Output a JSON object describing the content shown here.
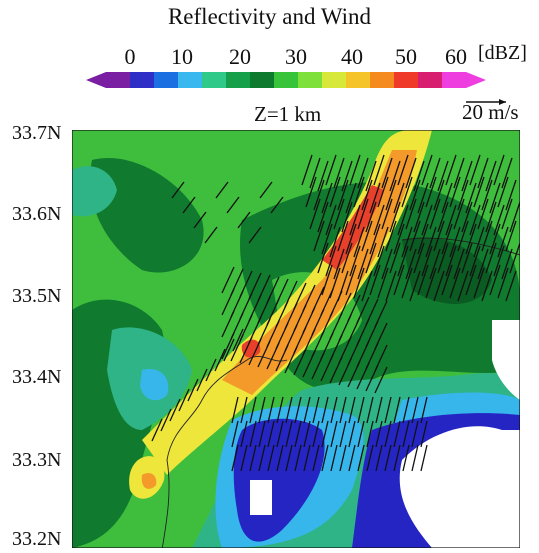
{
  "title": "Reflectivity and Wind",
  "colorbar": {
    "ticks": [
      "0",
      "10",
      "20",
      "30",
      "40",
      "50",
      "60"
    ],
    "unit": "[dBZ]",
    "colors": [
      "#7a1fa2",
      "#2f2fc8",
      "#1b6fe0",
      "#39b8f0",
      "#2fc98a",
      "#17a04a",
      "#0e7a2e",
      "#38c43a",
      "#7ee03a",
      "#d8e83a",
      "#f5c32a",
      "#f58a1e",
      "#ef3a2a",
      "#d81e6e",
      "#ee3ee0"
    ]
  },
  "subtitle": "Z=1 km",
  "reference_vector": {
    "label": "20 m/s"
  },
  "y_axis_labels": [
    "33.7N",
    "33.6N",
    "33.5N",
    "33.4N",
    "33.3N",
    "33.2N"
  ],
  "map": {
    "field": "radar reflectivity",
    "colors": {
      "background_green": "#3fbe3d",
      "dark_green": "#107a2e",
      "teal": "#2fb487",
      "light_blue": "#37b6ec",
      "blue": "#2525c4",
      "yellow": "#eee63a",
      "orange": "#f39a2a",
      "red": "#e8402a",
      "no_data": "#ffffff"
    }
  }
}
